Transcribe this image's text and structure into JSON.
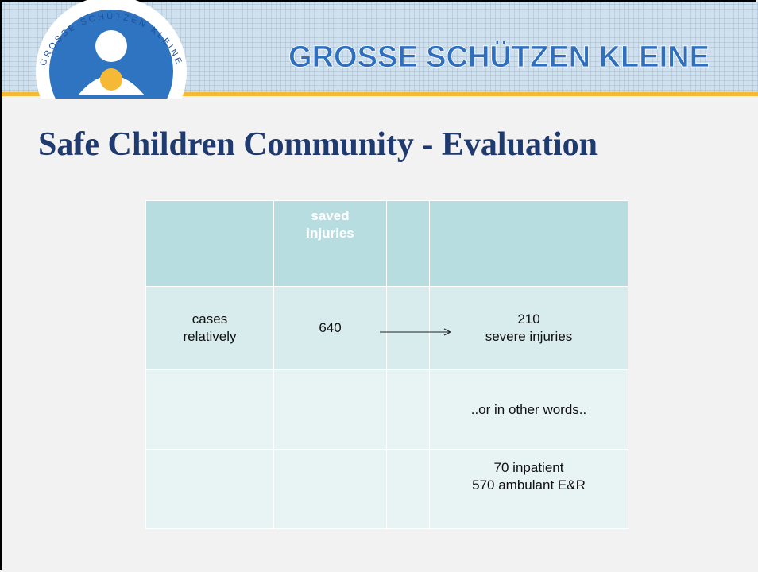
{
  "logo": {
    "text": "GROSSE SCHÜTZEN KLEINE"
  },
  "header": {
    "title": "GROSSE SCHÜTZEN KLEINE"
  },
  "slide": {
    "title": "Safe Children Community - Evaluation"
  },
  "table": {
    "rows": [
      [
        null,
        "saved\ninjuries",
        null,
        null
      ],
      [
        "cases\nrelatively",
        "640",
        null,
        "210\nsevere injuries"
      ],
      [
        null,
        null,
        null,
        "..or in other words.."
      ],
      [
        null,
        null,
        null,
        "70 inpatient\n570 ambulant E&R"
      ]
    ]
  }
}
